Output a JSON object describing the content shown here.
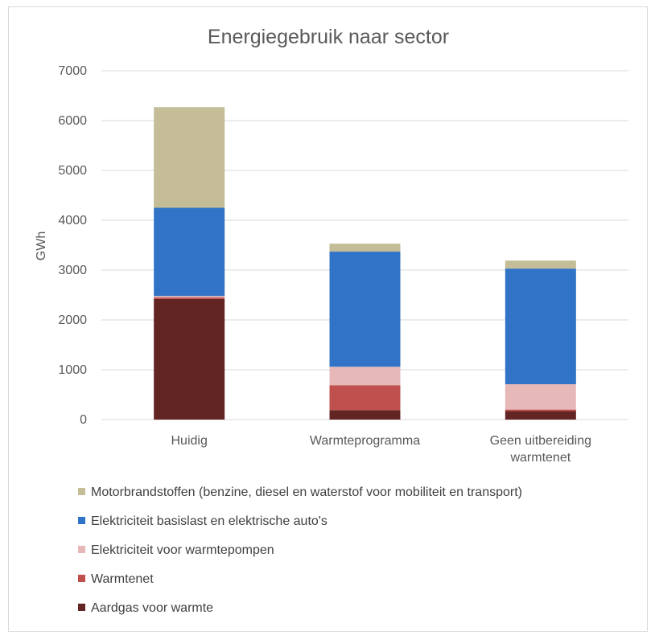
{
  "chart_data": {
    "type": "bar",
    "stacked": true,
    "title": "Energiegebruik naar sector",
    "ylabel": "GWh",
    "xlabel": "",
    "ylim": [
      0,
      7000
    ],
    "yticks": [
      0,
      1000,
      2000,
      3000,
      4000,
      5000,
      6000,
      7000
    ],
    "grid": true,
    "legend_position": "bottom",
    "categories": [
      [
        "Huidig"
      ],
      [
        "Warmteprogramma"
      ],
      [
        "Geen uitbereiding",
        "warmtenet"
      ]
    ],
    "series": [
      {
        "name": "Aardgas voor warmte",
        "color": "#632523",
        "values": [
          2420,
          190,
          170
        ]
      },
      {
        "name": "Warmtenet",
        "color": "#c0504d",
        "values": [
          30,
          500,
          30
        ]
      },
      {
        "name": "Elektriciteit voor warmtepompen",
        "color": "#e6b9b8",
        "values": [
          30,
          370,
          510
        ]
      },
      {
        "name": "Elektriciteit basislast en elektrische auto's",
        "color": "#3173c6",
        "values": [
          1770,
          2310,
          2320
        ]
      },
      {
        "name": "Motorbrandstoffen (benzine, diesel en waterstof  voor mobiliteit en transport)",
        "color": "#c4bd97",
        "values": [
          2020,
          160,
          160
        ]
      }
    ]
  }
}
